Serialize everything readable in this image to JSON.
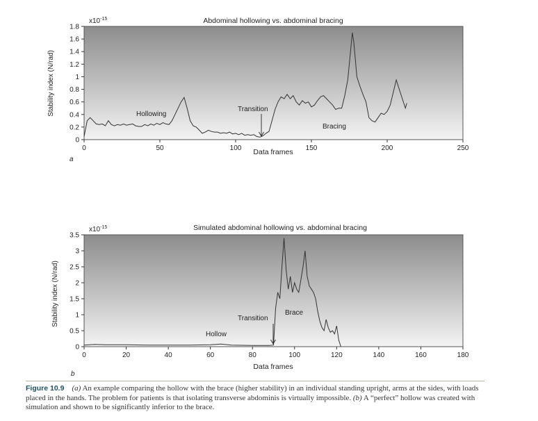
{
  "chart_data": [
    {
      "type": "line",
      "panel_label": "a",
      "title": "Abdominal hollowing vs. abdominal bracing",
      "xlabel": "Data frames",
      "ylabel": "Stability index (N/rad)",
      "y_multiplier": "x10",
      "y_multiplier_exp": "-15",
      "xlim": [
        0,
        250
      ],
      "ylim": [
        0,
        1.8
      ],
      "xticks": [
        0,
        50,
        100,
        150,
        200,
        250
      ],
      "yticks": [
        0,
        0.2,
        0.4,
        0.6,
        0.8,
        1,
        1.2,
        1.4,
        1.6,
        1.8
      ],
      "grid": false,
      "series": [
        {
          "x": [
            0,
            2,
            4,
            6,
            8,
            10,
            12,
            14,
            16,
            18,
            20,
            22,
            24,
            26,
            28,
            30,
            32,
            34,
            36,
            38,
            40,
            42,
            44,
            46,
            48,
            50,
            52,
            54,
            56,
            58,
            60,
            62,
            64,
            66,
            68,
            70,
            72,
            74,
            76,
            78,
            80,
            82,
            84,
            86,
            88,
            90,
            92,
            94,
            96,
            98,
            100,
            102,
            104,
            106,
            108,
            110,
            112,
            114,
            116,
            118,
            120,
            122,
            124,
            126,
            128,
            130,
            132,
            134,
            136,
            138,
            140,
            142,
            144,
            146,
            148,
            150,
            152,
            154,
            156,
            158,
            160,
            162,
            164,
            166,
            168,
            170,
            172,
            174,
            176,
            177,
            178,
            180,
            182,
            184,
            186,
            188,
            190,
            192,
            194,
            196,
            198,
            200,
            202,
            204,
            206,
            208,
            210,
            212,
            213
          ],
          "y": [
            0.05,
            0.3,
            0.35,
            0.3,
            0.25,
            0.24,
            0.25,
            0.22,
            0.3,
            0.24,
            0.22,
            0.24,
            0.23,
            0.25,
            0.23,
            0.24,
            0.25,
            0.22,
            0.21,
            0.21,
            0.24,
            0.22,
            0.25,
            0.23,
            0.26,
            0.24,
            0.27,
            0.25,
            0.24,
            0.3,
            0.4,
            0.5,
            0.6,
            0.67,
            0.5,
            0.3,
            0.22,
            0.2,
            0.15,
            0.1,
            0.12,
            0.15,
            0.13,
            0.12,
            0.12,
            0.1,
            0.11,
            0.1,
            0.12,
            0.09,
            0.1,
            0.08,
            0.1,
            0.07,
            0.08,
            0.07,
            0.08,
            0.05,
            0.04,
            0.06,
            0.1,
            0.13,
            0.3,
            0.48,
            0.6,
            0.68,
            0.65,
            0.72,
            0.65,
            0.7,
            0.6,
            0.55,
            0.62,
            0.58,
            0.6,
            0.52,
            0.55,
            0.62,
            0.68,
            0.7,
            0.65,
            0.6,
            0.55,
            0.48,
            0.5,
            0.5,
            0.7,
            0.95,
            1.45,
            1.7,
            1.55,
            1.0,
            0.85,
            0.72,
            0.6,
            0.35,
            0.3,
            0.28,
            0.35,
            0.42,
            0.4,
            0.45,
            0.55,
            0.75,
            0.95,
            0.8,
            0.65,
            0.5,
            0.58
          ]
        }
      ],
      "annotations": [
        "Hollowing",
        "Transition",
        "Bracing"
      ]
    },
    {
      "type": "line",
      "panel_label": "b",
      "title": "Simulated abdominal hollowing vs. abdominal bracing",
      "xlabel": "Data frames",
      "ylabel": "Stability index (N/rad)",
      "y_multiplier": "x10",
      "y_multiplier_exp": "-15",
      "xlim": [
        0,
        180
      ],
      "ylim": [
        0,
        3.5
      ],
      "xticks": [
        0,
        20,
        40,
        60,
        80,
        100,
        120,
        140,
        160,
        180
      ],
      "yticks": [
        0,
        0.5,
        1,
        1.5,
        2,
        2.5,
        3,
        3.5
      ],
      "grid": false,
      "series": [
        {
          "x": [
            0,
            5,
            10,
            20,
            30,
            40,
            50,
            60,
            65,
            70,
            80,
            88,
            90,
            91,
            92,
            93,
            94,
            95,
            96,
            97,
            98,
            99,
            100,
            101,
            102,
            103,
            104,
            105,
            106,
            107,
            108,
            109,
            110,
            111,
            112,
            113,
            114,
            115,
            116,
            117,
            118,
            119,
            120,
            121,
            122
          ],
          "y": [
            0.05,
            0.07,
            0.06,
            0.06,
            0.05,
            0.05,
            0.05,
            0.06,
            0.08,
            0.05,
            0.04,
            0.04,
            0.05,
            1.2,
            1.7,
            1.5,
            2.5,
            3.4,
            2.4,
            1.8,
            2.2,
            1.7,
            2.0,
            1.8,
            1.7,
            2.1,
            2.5,
            3.0,
            2.2,
            1.9,
            1.8,
            1.7,
            1.5,
            1.1,
            0.8,
            0.6,
            0.5,
            0.85,
            0.6,
            0.45,
            0.5,
            0.4,
            0.65,
            0.2,
            0.0
          ]
        }
      ],
      "annotations": [
        "Hollow",
        "Transition",
        "Brace"
      ]
    }
  ],
  "caption": {
    "figure_number": "Figure 10.9",
    "part_a_label": "(a)",
    "part_a_text": "An example comparing the hollow with the brace (higher stability) in an individual standing upright, arms at the sides, with loads placed in the hands. The problem for patients is that isolating transverse abdominis is virtually impossible.",
    "part_b_label": "(b)",
    "part_b_text": "A “perfect” hollow was created with simulation and shown to be significantly inferior to the brace."
  }
}
